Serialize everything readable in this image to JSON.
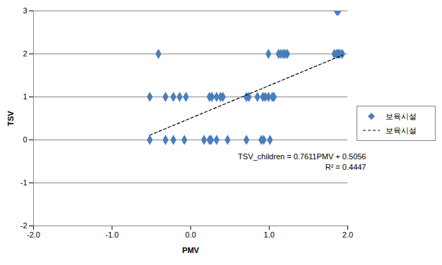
{
  "chart_data": {
    "type": "scatter",
    "x_label": "PMV",
    "y_label": "TSV",
    "xlim": [
      -2,
      2
    ],
    "xticks": [
      {
        "value": -2,
        "label": "-2.0"
      },
      {
        "value": -1,
        "label": "-1.0"
      },
      {
        "value": 0,
        "label": "0.0"
      },
      {
        "value": 1,
        "label": "1.0"
      },
      {
        "value": 2,
        "label": "2.0"
      }
    ],
    "ylim": [
      -2,
      3
    ],
    "yticks": [
      -2,
      -1,
      0,
      1,
      2,
      3
    ],
    "grid": true,
    "legend": "right",
    "series": [
      {
        "name": "보육시설",
        "type": "scatter",
        "color": "#4a7ebb",
        "marker": "diamond",
        "x": [
          -0.52,
          -0.32,
          -0.22,
          -0.08,
          0.17,
          0.24,
          0.26,
          0.33,
          0.47,
          0.71,
          0.9,
          0.93,
          1.01,
          -0.52,
          -0.32,
          -0.22,
          -0.14,
          -0.06,
          0.24,
          0.27,
          0.33,
          0.38,
          0.41,
          0.71,
          0.74,
          0.85,
          0.92,
          0.95,
          0.99,
          1.04,
          1.06,
          -0.41,
          0.99,
          1.12,
          1.15,
          1.18,
          1.2,
          1.23,
          1.83,
          1.86,
          1.88,
          1.9,
          1.93,
          1.86,
          1.88
        ],
        "values": [
          0,
          0,
          0,
          0,
          0,
          0,
          0,
          0,
          0,
          0,
          0,
          0,
          0,
          1,
          1,
          1,
          1,
          1,
          1,
          1,
          1,
          1,
          1,
          1,
          1,
          1,
          1,
          1,
          1,
          1,
          1,
          2,
          2,
          2,
          2,
          2,
          2,
          2,
          2,
          2,
          2,
          2,
          2,
          3,
          3
        ]
      },
      {
        "name": "보육시설",
        "type": "line",
        "color": "#000000",
        "line_style": "dashed",
        "x": [
          -0.52,
          1.93
        ],
        "values": [
          0.11,
          1.97
        ]
      }
    ],
    "annotations": [
      "TSV_children = 0.7611PMV + 0.5056",
      "R² = 0.4447"
    ]
  }
}
